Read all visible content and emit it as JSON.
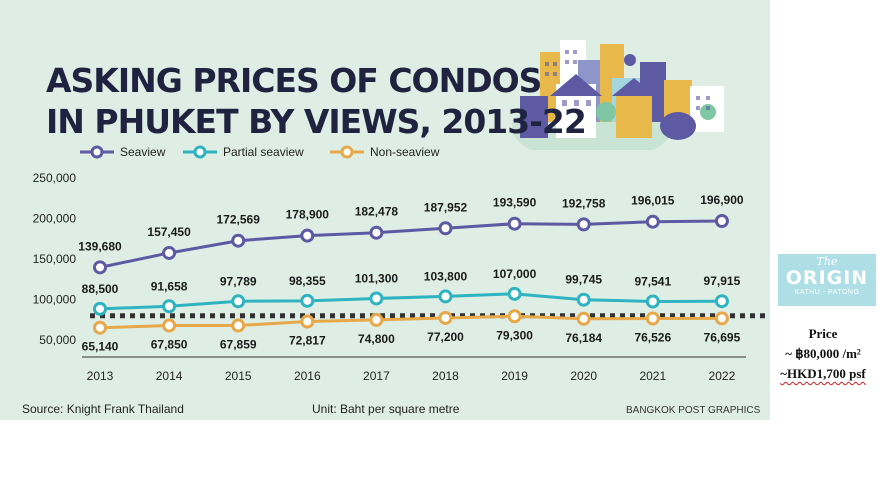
{
  "title_lines": [
    "ASKING PRICES OF CONDOS",
    "IN PHUKET BY VIEWS, 2013-22"
  ],
  "source": "Source: Knight Frank Thailand",
  "unit": "Unit: Baht per square metre",
  "credit": "BANGKOK POST GRAPHICS",
  "logo": {
    "the": "The",
    "name": "ORIGIN",
    "sub": "KATHU - PATONG"
  },
  "price": {
    "heading": "Price",
    "thb": "~ ฿80,000 /m²",
    "hkd": "~HKD1,700 psf"
  },
  "chart_data": {
    "type": "line",
    "categories": [
      "2013",
      "2014",
      "2015",
      "2016",
      "2017",
      "2018",
      "2019",
      "2020",
      "2021",
      "2022"
    ],
    "ylim": [
      50000,
      250000
    ],
    "yticks": [
      50000,
      100000,
      150000,
      200000,
      250000
    ],
    "ytick_labels": [
      "50,000",
      "100,000",
      "150,000",
      "200,000",
      "250,000"
    ],
    "legend_position": "top-left",
    "series": [
      {
        "name": "Seaview",
        "color": "#5d5aa3",
        "values": [
          139680,
          157450,
          172569,
          178900,
          182478,
          187952,
          193590,
          192758,
          196015,
          196900
        ],
        "labels": [
          "139,680",
          "157,450",
          "172,569",
          "178,900",
          "182,478",
          "187,952",
          "193,590",
          "192,758",
          "196,015",
          "196,900"
        ]
      },
      {
        "name": "Partial seaview",
        "color": "#2fb3c0",
        "values": [
          88500,
          91658,
          97789,
          98355,
          101300,
          103800,
          107000,
          99745,
          97541,
          97915
        ],
        "labels": [
          "88,500",
          "91,658",
          "97,789",
          "98,355",
          "101,300",
          "103,800",
          "107,000",
          "99,745",
          "97,541",
          "97,915"
        ]
      },
      {
        "name": "Non-seaview",
        "color": "#e7a84a",
        "values": [
          65140,
          67850,
          67859,
          72817,
          74800,
          77200,
          79300,
          76184,
          76526,
          76695
        ],
        "labels": [
          "65,140",
          "67,850",
          "67,859",
          "72,817",
          "74,800",
          "77,200",
          "79,300",
          "76,184",
          "76,526",
          "76,695"
        ]
      }
    ],
    "reference_line": {
      "style": "dotted",
      "color": "#333333",
      "value": 80000
    }
  }
}
